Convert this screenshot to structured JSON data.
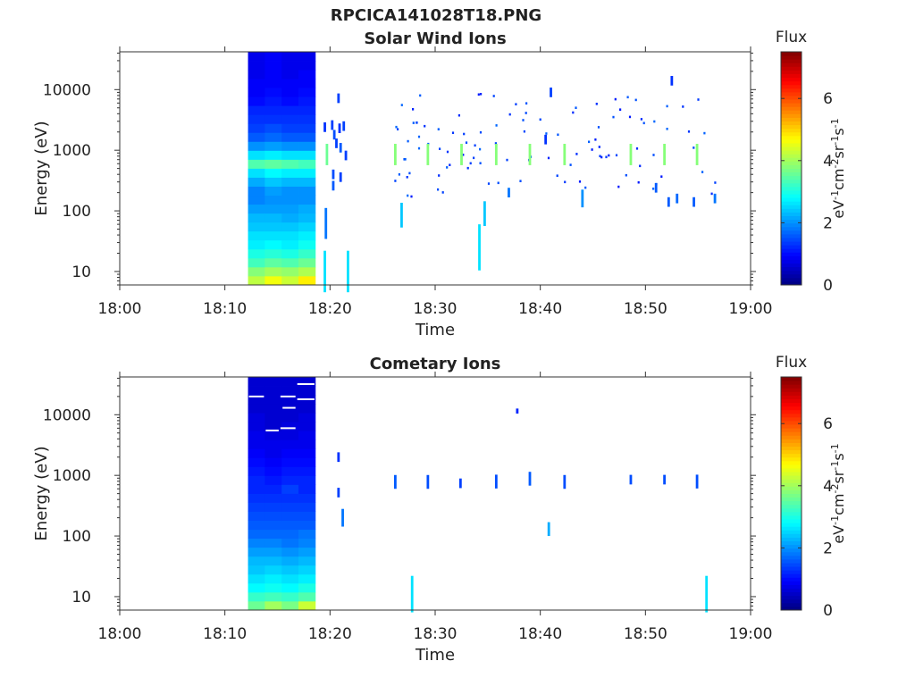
{
  "figure_title": "RPCICA141028T18.PNG",
  "colorbar": {
    "label": "Flux",
    "unit_label": "eV-1cm-2sr-1s-1",
    "ticks": [
      "0",
      "2",
      "4",
      "6"
    ],
    "range": [
      0,
      7.5
    ],
    "colormap": "jet"
  },
  "colors": {
    "axis": "#333333",
    "text": "#222222",
    "background": "#ffffff"
  },
  "chart_data": [
    {
      "type": "heatmap",
      "title": "Solar Wind Ions",
      "xlabel": "Time",
      "ylabel": "Energy (eV)",
      "x_ticks": [
        "18:00",
        "18:10",
        "18:20",
        "18:30",
        "18:40",
        "18:50",
        "19:00"
      ],
      "x_range_minutes": [
        0,
        60
      ],
      "y_ticks": [
        "10",
        "100",
        "1000",
        "10000"
      ],
      "y_scale": "log",
      "y_range_eV": [
        6,
        42000
      ],
      "block": {
        "t_start": 12.2,
        "t_end": 18.6,
        "columns": [
          [
            4.2,
            3.8,
            3.3,
            3.0,
            2.7,
            2.6,
            2.4,
            2.3,
            2.1,
            1.9,
            1.9,
            2.2,
            2.6,
            3.4,
            2.6,
            2.0,
            1.6,
            1.4,
            1.3,
            1.2,
            1.0,
            0.9,
            0.9,
            0.8,
            0.8,
            0.8
          ],
          [
            4.6,
            4.0,
            3.5,
            3.1,
            2.8,
            2.6,
            2.4,
            2.3,
            2.1,
            2.0,
            2.1,
            2.4,
            2.8,
            3.5,
            2.7,
            2.1,
            1.7,
            1.5,
            1.3,
            1.2,
            1.1,
            1.0,
            0.9,
            0.9,
            0.9,
            0.9
          ],
          [
            4.3,
            3.9,
            3.4,
            3.0,
            2.7,
            2.6,
            2.4,
            2.2,
            2.1,
            2.0,
            2.0,
            2.3,
            2.7,
            3.4,
            2.6,
            2.0,
            1.6,
            1.4,
            1.3,
            1.2,
            1.0,
            0.9,
            0.9,
            0.8,
            0.8,
            0.8
          ],
          [
            4.8,
            4.1,
            3.6,
            3.2,
            2.9,
            2.7,
            2.5,
            2.3,
            2.2,
            2.0,
            2.0,
            2.3,
            2.7,
            3.3,
            2.6,
            2.0,
            1.6,
            1.4,
            1.3,
            1.2,
            1.1,
            1.0,
            0.9,
            0.9,
            0.8,
            0.8
          ]
        ]
      },
      "events": [
        {
          "t": 19.5,
          "e": 10,
          "v": 2.6,
          "s": 2.2
        },
        {
          "t": 19.6,
          "e": 62,
          "v": 1.8,
          "s": 1.8
        },
        {
          "t": 19.7,
          "e": 850,
          "v": 3.6,
          "s": 1.5
        },
        {
          "t": 19.5,
          "e": 2400,
          "v": 1.3,
          "s": 1.2
        },
        {
          "t": 20.2,
          "e": 2600,
          "v": 1.4,
          "s": 1.2
        },
        {
          "t": 20.4,
          "e": 1800,
          "v": 1.5,
          "s": 1.2
        },
        {
          "t": 20.6,
          "e": 1300,
          "v": 1.4,
          "s": 1.2
        },
        {
          "t": 20.9,
          "e": 2300,
          "v": 1.3,
          "s": 1.2
        },
        {
          "t": 21.3,
          "e": 2500,
          "v": 1.4,
          "s": 1.2
        },
        {
          "t": 21.0,
          "e": 1100,
          "v": 1.6,
          "s": 1.2
        },
        {
          "t": 21.5,
          "e": 820,
          "v": 1.4,
          "s": 1.2
        },
        {
          "t": 20.3,
          "e": 400,
          "v": 1.5,
          "s": 1.2
        },
        {
          "t": 20.3,
          "e": 260,
          "v": 1.6,
          "s": 1.2
        },
        {
          "t": 21.0,
          "e": 360,
          "v": 1.4,
          "s": 1.2
        },
        {
          "t": 20.8,
          "e": 7200,
          "v": 1.4,
          "s": 1.2
        },
        {
          "t": 21.7,
          "e": 10,
          "v": 2.6,
          "s": 2.2
        },
        {
          "t": 26.2,
          "e": 850,
          "v": 3.8,
          "s": 1.5
        },
        {
          "t": 26.8,
          "e": 85,
          "v": 2.4,
          "s": 1.6
        },
        {
          "t": 29.3,
          "e": 850,
          "v": 3.8,
          "s": 1.5
        },
        {
          "t": 32.5,
          "e": 850,
          "v": 3.8,
          "s": 1.5
        },
        {
          "t": 34.2,
          "e": 25,
          "v": 2.6,
          "s": 2.4
        },
        {
          "t": 34.7,
          "e": 90,
          "v": 2.4,
          "s": 1.6
        },
        {
          "t": 35.8,
          "e": 850,
          "v": 3.8,
          "s": 1.5
        },
        {
          "t": 39.0,
          "e": 850,
          "v": 3.8,
          "s": 1.5
        },
        {
          "t": 42.3,
          "e": 850,
          "v": 3.8,
          "s": 1.5
        },
        {
          "t": 48.6,
          "e": 850,
          "v": 3.8,
          "s": 1.5
        },
        {
          "t": 51.8,
          "e": 850,
          "v": 3.8,
          "s": 1.5
        },
        {
          "t": 54.9,
          "e": 850,
          "v": 3.8,
          "s": 1.5
        },
        {
          "t": 44.0,
          "e": 160,
          "v": 2.0,
          "s": 1.4
        },
        {
          "t": 37.0,
          "e": 200,
          "v": 1.8,
          "s": 1.2
        },
        {
          "t": 51.0,
          "e": 240,
          "v": 1.6,
          "s": 1.2
        },
        {
          "t": 52.2,
          "e": 140,
          "v": 1.6,
          "s": 1.2
        },
        {
          "t": 53.0,
          "e": 160,
          "v": 1.7,
          "s": 1.2
        },
        {
          "t": 54.6,
          "e": 140,
          "v": 1.6,
          "s": 1.2
        },
        {
          "t": 56.6,
          "e": 160,
          "v": 1.8,
          "s": 1.2
        },
        {
          "t": 40.5,
          "e": 1500,
          "v": 1.3,
          "s": 1.2
        },
        {
          "t": 41.0,
          "e": 9000,
          "v": 1.4,
          "s": 1.2
        },
        {
          "t": 52.5,
          "e": 14000,
          "v": 1.3,
          "s": 1.2
        }
      ],
      "scatter_seed": 11,
      "scatter_count": 110,
      "scatter_t_range": [
        25.5,
        56.8
      ],
      "scatter_e_range": [
        180,
        9000
      ]
    },
    {
      "type": "heatmap",
      "title": "Cometary Ions",
      "xlabel": "Time",
      "ylabel": "Energy (eV)",
      "x_ticks": [
        "18:00",
        "18:10",
        "18:20",
        "18:30",
        "18:40",
        "18:50",
        "19:00"
      ],
      "x_range_minutes": [
        0,
        60
      ],
      "y_ticks": [
        "10",
        "100",
        "1000",
        "10000"
      ],
      "y_scale": "log",
      "y_range_eV": [
        6,
        42000
      ],
      "block": {
        "t_start": 12.2,
        "t_end": 18.6,
        "columns": [
          [
            3.6,
            3.2,
            2.8,
            2.6,
            2.4,
            2.3,
            2.1,
            1.9,
            1.7,
            1.6,
            1.5,
            1.4,
            1.3,
            1.2,
            1.2,
            1.1,
            1.0,
            0.9,
            0.8,
            0.8,
            0.7,
            0.7,
            0.6,
            0.6,
            0.6,
            0.6
          ],
          [
            4.0,
            3.3,
            2.9,
            2.7,
            2.5,
            2.3,
            2.1,
            1.9,
            1.7,
            1.6,
            1.5,
            1.4,
            1.3,
            1.2,
            1.1,
            1.0,
            0.9,
            0.8,
            0.8,
            0.7,
            0.6,
            0.6,
            0.6,
            0.6,
            0.6,
            0.6
          ],
          [
            3.7,
            3.2,
            2.8,
            2.6,
            2.4,
            2.2,
            2.0,
            1.8,
            1.7,
            1.6,
            1.5,
            1.4,
            1.3,
            1.4,
            1.2,
            1.1,
            1.0,
            0.9,
            0.8,
            0.7,
            0.7,
            0.6,
            0.6,
            0.6,
            0.6,
            0.6
          ],
          [
            4.3,
            3.4,
            3.0,
            2.7,
            2.5,
            2.3,
            2.1,
            1.9,
            1.8,
            1.6,
            1.5,
            1.4,
            1.3,
            1.2,
            1.2,
            1.1,
            1.0,
            0.9,
            0.8,
            0.8,
            0.7,
            0.7,
            0.6,
            0.6,
            0.6,
            0.6
          ]
        ]
      },
      "events": [
        {
          "t": 20.8,
          "e": 2000,
          "v": 1.3,
          "s": 1.2
        },
        {
          "t": 20.8,
          "e": 520,
          "v": 1.4,
          "s": 1.2
        },
        {
          "t": 21.2,
          "e": 200,
          "v": 1.8,
          "s": 1.4
        },
        {
          "t": 26.2,
          "e": 780,
          "v": 1.6,
          "s": 1.3
        },
        {
          "t": 29.3,
          "e": 780,
          "v": 1.5,
          "s": 1.3
        },
        {
          "t": 32.4,
          "e": 740,
          "v": 1.4,
          "s": 1.2
        },
        {
          "t": 35.8,
          "e": 790,
          "v": 1.5,
          "s": 1.3
        },
        {
          "t": 39.0,
          "e": 880,
          "v": 1.6,
          "s": 1.3
        },
        {
          "t": 42.3,
          "e": 780,
          "v": 1.5,
          "s": 1.3
        },
        {
          "t": 48.6,
          "e": 850,
          "v": 1.5,
          "s": 1.2
        },
        {
          "t": 51.8,
          "e": 850,
          "v": 1.5,
          "s": 1.2
        },
        {
          "t": 54.9,
          "e": 790,
          "v": 1.5,
          "s": 1.3
        },
        {
          "t": 37.8,
          "e": 11500,
          "v": 1.2,
          "s": 1.1
        },
        {
          "t": 40.8,
          "e": 130,
          "v": 2.2,
          "s": 1.3
        },
        {
          "t": 27.8,
          "e": 11,
          "v": 2.6,
          "s": 2.0
        },
        {
          "t": 55.8,
          "e": 11,
          "v": 2.6,
          "s": 2.0
        }
      ],
      "white_lines": [
        {
          "t1": 12.2,
          "t2": 13.8,
          "e": 20000
        },
        {
          "t1": 15.2,
          "t2": 16.8,
          "e": 20000
        },
        {
          "t1": 15.4,
          "t2": 16.8,
          "e": 13000
        },
        {
          "t1": 13.8,
          "t2": 15.2,
          "e": 5500
        },
        {
          "t1": 15.2,
          "t2": 16.8,
          "e": 6000
        },
        {
          "t1": 16.8,
          "t2": 18.6,
          "e": 32000
        },
        {
          "t1": 16.8,
          "t2": 18.6,
          "e": 18000
        }
      ],
      "scatter_seed": 0,
      "scatter_count": 0,
      "scatter_t_range": [
        0,
        0
      ],
      "scatter_e_range": [
        1,
        1
      ]
    }
  ]
}
